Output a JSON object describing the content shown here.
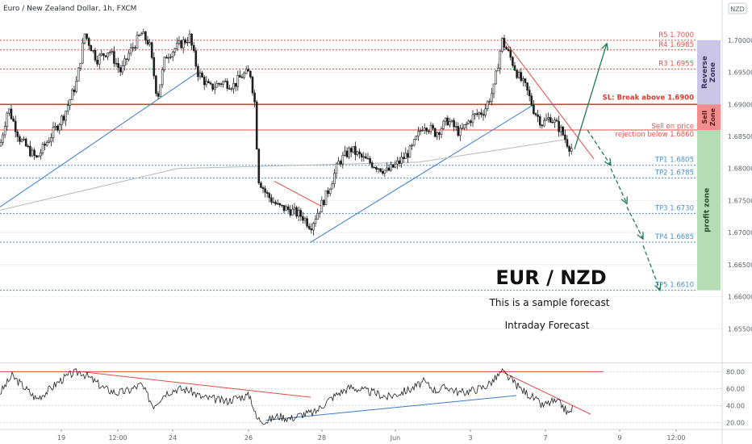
{
  "header": {
    "title": "Euro / New Zealand Dollar, 1h, FXCM",
    "currency": "NZD"
  },
  "colors": {
    "resistance": "#e0524a",
    "stoploss": "#d93b30",
    "target": "#4a90d0",
    "trend_blue": "#3a7cc9",
    "trend_red": "#e04b44",
    "arrow": "#1e7a55",
    "reverse_zone": "#cbc5e6",
    "sell_zone": "#f08d8d",
    "profit_zone": "#b5dcb5",
    "candle_up": "#26a69a",
    "candle_down": "#ef5350"
  },
  "chart_data": [
    {
      "type": "candlestick",
      "title": "Euro / New Zealand Dollar, 1h, FXCM",
      "ylim": [
        1.65,
        1.7025
      ],
      "y_ticks": [
        "1.70000",
        "1.69500",
        "1.69000",
        "1.68500",
        "1.68000",
        "1.67500",
        "1.67000",
        "1.66500",
        "1.66000",
        "1.65500"
      ],
      "x_ticks": [
        "19",
        "12:00",
        "24",
        "26",
        "28",
        "Jun",
        "3",
        "7",
        "9",
        "12:00"
      ],
      "series": [
        {
          "kind": "close_path",
          "points": [
            [
              0,
              1.6835
            ],
            [
              10,
              1.6895
            ],
            [
              25,
              1.6845
            ],
            [
              45,
              1.6815
            ],
            [
              60,
              1.6845
            ],
            [
              80,
              1.6885
            ],
            [
              95,
              1.6935
            ],
            [
              105,
              1.701
            ],
            [
              120,
              1.697
            ],
            [
              135,
              1.6985
            ],
            [
              150,
              1.695
            ],
            [
              160,
              1.698
            ],
            [
              175,
              1.701
            ],
            [
              185,
              1.6995
            ],
            [
              195,
              1.691
            ],
            [
              205,
              1.6975
            ],
            [
              220,
              1.699
            ],
            [
              235,
              1.7005
            ],
            [
              245,
              1.695
            ],
            [
              260,
              1.6925
            ],
            [
              275,
              1.6935
            ],
            [
              290,
              1.693
            ],
            [
              300,
              1.6945
            ],
            [
              310,
              1.695
            ],
            [
              316,
              1.69
            ],
            [
              320,
              1.6785
            ],
            [
              330,
              1.676
            ],
            [
              345,
              1.674
            ],
            [
              360,
              1.6735
            ],
            [
              375,
              1.6725
            ],
            [
              385,
              1.671
            ],
            [
              395,
              1.6735
            ],
            [
              405,
              1.676
            ],
            [
              420,
              1.681
            ],
            [
              435,
              1.683
            ],
            [
              450,
              1.6815
            ],
            [
              465,
              1.6805
            ],
            [
              480,
              1.6795
            ],
            [
              495,
              1.681
            ],
            [
              510,
              1.683
            ],
            [
              525,
              1.687
            ],
            [
              540,
              1.6855
            ],
            [
              555,
              1.6875
            ],
            [
              570,
              1.6855
            ],
            [
              585,
              1.688
            ],
            [
              600,
              1.689
            ],
            [
              612,
              1.6925
            ],
            [
              622,
              1.7
            ],
            [
              632,
              1.6975
            ],
            [
              642,
              1.6945
            ],
            [
              652,
              1.6925
            ],
            [
              662,
              1.689
            ],
            [
              672,
              1.687
            ],
            [
              682,
              1.688
            ],
            [
              695,
              1.686
            ],
            [
              705,
              1.6835
            ],
            [
              710,
              1.683
            ]
          ]
        }
      ],
      "levels": [
        {
          "name": "R5",
          "label": "R5  1.7000",
          "value": 1.7
        },
        {
          "name": "R4",
          "label": "R4  1.6985",
          "value": 1.6985
        },
        {
          "name": "R3",
          "label": "R3  1.6955",
          "value": 1.6955
        },
        {
          "name": "SL",
          "label": "SL: Break above 1.6900",
          "value": 1.69
        },
        {
          "name": "Sell",
          "label_line1": "Sell on price",
          "label_line2": "rejection below 1.6860",
          "value": 1.686
        },
        {
          "name": "TP1",
          "label": "TP1  1.6805",
          "value": 1.6805
        },
        {
          "name": "TP2",
          "label": "TP2  1.6785",
          "value": 1.6785
        },
        {
          "name": "TP3",
          "label": "TP3  1.6730",
          "value": 1.673
        },
        {
          "name": "TP4",
          "label": "TP4  1.6685",
          "value": 1.6685
        },
        {
          "name": "TP5",
          "label": "TP5  1.6610",
          "value": 1.661
        }
      ],
      "zones": [
        {
          "label": "Reverse Zone",
          "from": 1.69,
          "to": 1.7
        },
        {
          "label": "Sell Zone",
          "from": 1.686,
          "to": 1.69
        },
        {
          "label": "profit zone",
          "from": 1.661,
          "to": 1.686
        }
      ],
      "trend_lines": [
        {
          "color": "blue",
          "points": [
            [
              0,
              1.674
            ],
            [
              245,
              1.695
            ]
          ]
        },
        {
          "color": "blue",
          "points": [
            [
              385,
              1.6685
            ],
            [
              662,
              1.69
            ]
          ]
        },
        {
          "color": "blue",
          "points": [
            [
              0,
              1.6735
            ],
            [
              220,
              1.68
            ],
            [
              520,
              1.681
            ],
            [
              700,
              1.6845
            ]
          ],
          "style": "ma"
        },
        {
          "color": "red",
          "points": [
            [
              340,
              1.678
            ],
            [
              400,
              1.674
            ]
          ]
        },
        {
          "color": "red",
          "points": [
            [
              622,
              1.7005
            ],
            [
              736,
              1.6815
            ]
          ]
        }
      ],
      "forecast_arrows": [
        [
          [
            712,
            1.683
          ],
          [
            752,
            1.6995
          ]
        ],
        [
          [
            728,
            1.686
          ],
          [
            757,
            1.6805
          ]
        ],
        [
          [
            757,
            1.68
          ],
          [
            777,
            1.6745
          ]
        ],
        [
          [
            777,
            1.674
          ],
          [
            797,
            1.669
          ]
        ],
        [
          [
            797,
            1.668
          ],
          [
            818,
            1.661
          ]
        ]
      ],
      "annotations": {
        "headline": "EUR / NZD",
        "subline1": "This is a sample forecast",
        "subline2": "Intraday Forecast"
      }
    },
    {
      "type": "line",
      "name": "oscillator",
      "ylim": [
        14,
        88
      ],
      "y_ticks": [
        "80.00",
        "60.00",
        "40.00",
        "20.00"
      ],
      "series": [
        {
          "kind": "oscillator",
          "points": [
            [
              0,
              55
            ],
            [
              15,
              75
            ],
            [
              30,
              62
            ],
            [
              45,
              48
            ],
            [
              60,
              58
            ],
            [
              75,
              70
            ],
            [
              90,
              78
            ],
            [
              100,
              80
            ],
            [
              115,
              70
            ],
            [
              130,
              60
            ],
            [
              145,
              55
            ],
            [
              160,
              58
            ],
            [
              175,
              65
            ],
            [
              190,
              40
            ],
            [
              205,
              55
            ],
            [
              220,
              60
            ],
            [
              235,
              58
            ],
            [
              250,
              50
            ],
            [
              265,
              48
            ],
            [
              280,
              45
            ],
            [
              295,
              50
            ],
            [
              310,
              52
            ],
            [
              318,
              25
            ],
            [
              330,
              22
            ],
            [
              345,
              28
            ],
            [
              360,
              25
            ],
            [
              375,
              30
            ],
            [
              390,
              32
            ],
            [
              405,
              45
            ],
            [
              420,
              55
            ],
            [
              435,
              62
            ],
            [
              450,
              58
            ],
            [
              465,
              55
            ],
            [
              480,
              50
            ],
            [
              495,
              55
            ],
            [
              510,
              60
            ],
            [
              525,
              68
            ],
            [
              540,
              58
            ],
            [
              555,
              62
            ],
            [
              570,
              55
            ],
            [
              585,
              58
            ],
            [
              600,
              62
            ],
            [
              612,
              70
            ],
            [
              622,
              80
            ],
            [
              632,
              72
            ],
            [
              645,
              60
            ],
            [
              660,
              50
            ],
            [
              672,
              40
            ],
            [
              685,
              45
            ],
            [
              695,
              42
            ],
            [
              705,
              30
            ],
            [
              710,
              38
            ]
          ]
        }
      ],
      "trend_lines": [
        {
          "color": "red",
          "points": [
            [
              0,
              80
            ],
            [
              748,
              80
            ]
          ]
        },
        {
          "color": "red",
          "points": [
            [
              100,
              80
            ],
            [
              385,
              50
            ]
          ]
        },
        {
          "color": "blue",
          "points": [
            [
              330,
              23
            ],
            [
              640,
              52
            ]
          ]
        },
        {
          "color": "red",
          "points": [
            [
              622,
              80
            ],
            [
              732,
              30
            ]
          ]
        }
      ]
    }
  ]
}
